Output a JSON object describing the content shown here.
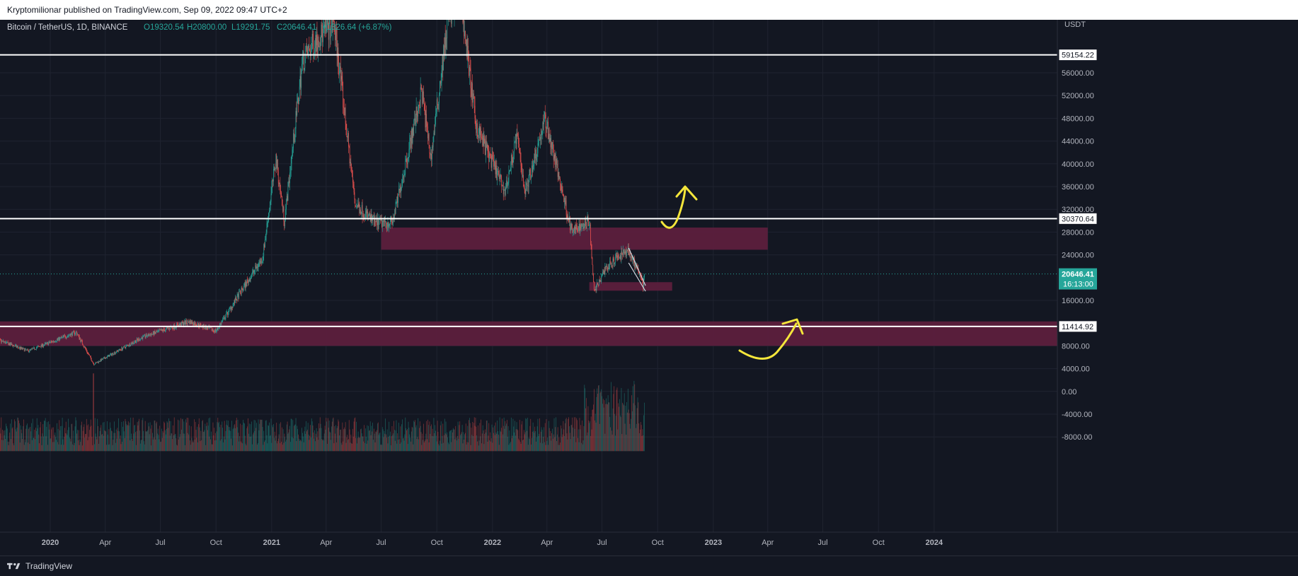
{
  "publish_line": "Kryptomilionar published on TradingView.com, Sep 09, 2022 09:47 UTC+2",
  "brand": "TradingView",
  "symbol_info": {
    "title": "Bitcoin / TetherUS, 1D, BINANCE",
    "open": "O19320.54",
    "high": "H20800.00",
    "low": "L19291.75",
    "close": "C20646.41",
    "change": "+1326.64 (+6.87%)"
  },
  "colors": {
    "background": "#131722",
    "up": "#26a69a",
    "down": "#ef5350",
    "zone": "#5c1f3d",
    "annotation": "#f5e63b",
    "text": "#d1d4dc",
    "last_price_bg": "#26a69a"
  },
  "chart_data": {
    "type": "candlestick",
    "title": "Bitcoin / TetherUS, 1D, BINANCE",
    "currency": "USDT",
    "ylim": [
      -10500,
      65000
    ],
    "y_ticks": [
      "56000.00",
      "52000.00",
      "48000.00",
      "44000.00",
      "40000.00",
      "36000.00",
      "32000.00",
      "28000.00",
      "24000.00",
      "16000.00",
      "8000.00",
      "4000.00",
      "0.00",
      "-4000.00",
      "-8000.00"
    ],
    "x_labels": [
      "2020",
      "Apr",
      "Jul",
      "Oct",
      "2021",
      "Apr",
      "Jul",
      "Oct",
      "2022",
      "Apr",
      "Jul",
      "Oct",
      "2023",
      "Apr",
      "Jul",
      "Oct",
      "2024"
    ],
    "price_keypoints": [
      {
        "date": "2019-09-01",
        "price": 10500
      },
      {
        "date": "2019-11-25",
        "price": 7100
      },
      {
        "date": "2020-02-13",
        "price": 10400
      },
      {
        "date": "2020-03-13",
        "price": 4800
      },
      {
        "date": "2020-06-01",
        "price": 9500
      },
      {
        "date": "2020-08-17",
        "price": 12300
      },
      {
        "date": "2020-10-01",
        "price": 10600
      },
      {
        "date": "2020-12-17",
        "price": 23500
      },
      {
        "date": "2021-01-08",
        "price": 41000
      },
      {
        "date": "2021-01-22",
        "price": 30000
      },
      {
        "date": "2021-02-21",
        "price": 58000
      },
      {
        "date": "2021-03-13",
        "price": 61500
      },
      {
        "date": "2021-04-14",
        "price": 64800
      },
      {
        "date": "2021-05-19",
        "price": 33000
      },
      {
        "date": "2021-06-22",
        "price": 29500
      },
      {
        "date": "2021-07-20",
        "price": 29800
      },
      {
        "date": "2021-09-06",
        "price": 52800
      },
      {
        "date": "2021-09-21",
        "price": 41000
      },
      {
        "date": "2021-10-20",
        "price": 66000
      },
      {
        "date": "2021-11-10",
        "price": 69000
      },
      {
        "date": "2021-12-04",
        "price": 47000
      },
      {
        "date": "2022-01-22",
        "price": 35000
      },
      {
        "date": "2022-02-10",
        "price": 45000
      },
      {
        "date": "2022-02-24",
        "price": 35000
      },
      {
        "date": "2022-03-29",
        "price": 48000
      },
      {
        "date": "2022-05-12",
        "price": 28000
      },
      {
        "date": "2022-06-10",
        "price": 30000
      },
      {
        "date": "2022-06-18",
        "price": 17600
      },
      {
        "date": "2022-07-08",
        "price": 21800
      },
      {
        "date": "2022-08-14",
        "price": 25000
      },
      {
        "date": "2022-09-07",
        "price": 18600
      },
      {
        "date": "2022-09-09",
        "price": 20646.41
      }
    ],
    "horizontal_lines": [
      {
        "price": 59154.22,
        "label": "59154.22"
      },
      {
        "price": 30370.64,
        "label": "30370.64"
      },
      {
        "price": 11414.92,
        "label": "11414.92"
      }
    ],
    "zones": [
      {
        "start": "2021-07-01",
        "end": "2023-04-01",
        "low": 24900,
        "high": 28800
      },
      {
        "start": "2022-06-10",
        "end": "2022-10-25",
        "low": 17700,
        "high": 19200
      },
      {
        "start": "2019-09-01",
        "end": "2024-09-01",
        "low": 8000,
        "high": 12300
      }
    ],
    "last_price": {
      "label": "20646.41",
      "countdown": "16:13:00",
      "price": 20646.41
    },
    "volume": {
      "style": "histogram",
      "note": "volume bars at bottom"
    }
  }
}
